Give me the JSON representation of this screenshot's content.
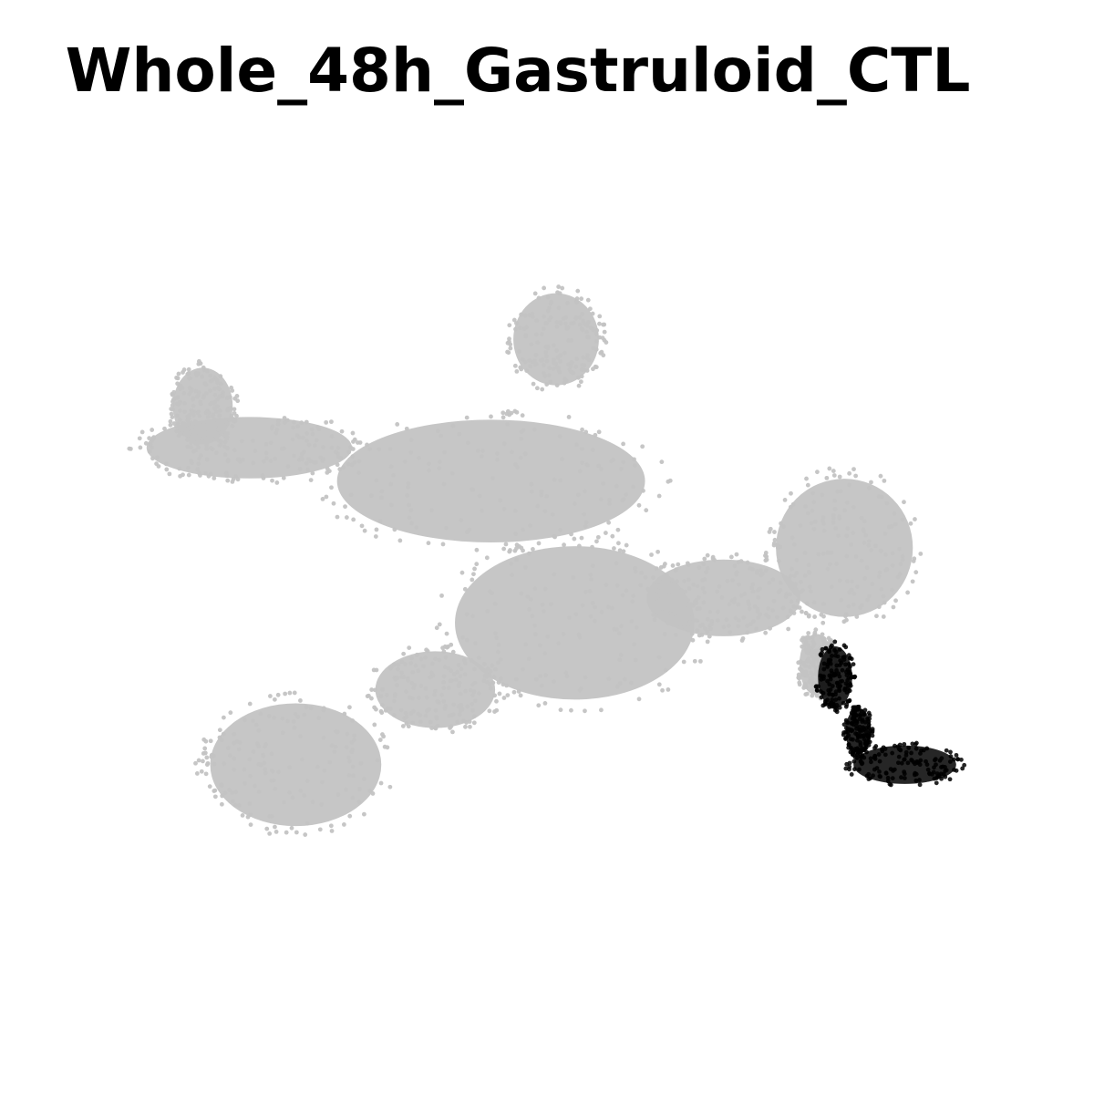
{
  "chart_data": {
    "type": "scatter",
    "title": "Whole_48h_Gastruloid_CTL",
    "xlabel": "",
    "ylabel": "",
    "xlim": [
      0,
      100
    ],
    "ylim": [
      0,
      100
    ],
    "grid": false,
    "axes_visible": false,
    "legend": false,
    "series": [
      {
        "role": "background",
        "color": "#c3c3c3",
        "regions": [
          {
            "cx": 50,
            "cy": 79,
            "rx": 5.0,
            "ry": 6.0
          },
          {
            "cx": 17,
            "cy": 66,
            "rx": 12.0,
            "ry": 4.0
          },
          {
            "cx": 12,
            "cy": 71,
            "rx": 3.5,
            "ry": 5.0
          },
          {
            "cx": 43,
            "cy": 62,
            "rx": 18.0,
            "ry": 8.0
          },
          {
            "cx": 52,
            "cy": 45,
            "rx": 14.0,
            "ry": 10.0
          },
          {
            "cx": 68,
            "cy": 48,
            "rx": 9.0,
            "ry": 5.0
          },
          {
            "cx": 81,
            "cy": 54,
            "rx": 8.0,
            "ry": 9.0
          },
          {
            "cx": 37,
            "cy": 37,
            "rx": 7.0,
            "ry": 5.0
          },
          {
            "cx": 22,
            "cy": 28,
            "rx": 10.0,
            "ry": 8.0
          },
          {
            "cx": 78,
            "cy": 40,
            "rx": 2.0,
            "ry": 4.0
          }
        ]
      },
      {
        "role": "highlight",
        "color": "#000000",
        "regions": [
          {
            "cx": 87.5,
            "cy": 28,
            "rx": 6.0,
            "ry": 2.5
          },
          {
            "cx": 82.5,
            "cy": 32,
            "rx": 1.5,
            "ry": 3.0
          },
          {
            "cx": 80,
            "cy": 38.5,
            "rx": 2.0,
            "ry": 4.0
          }
        ]
      }
    ]
  }
}
